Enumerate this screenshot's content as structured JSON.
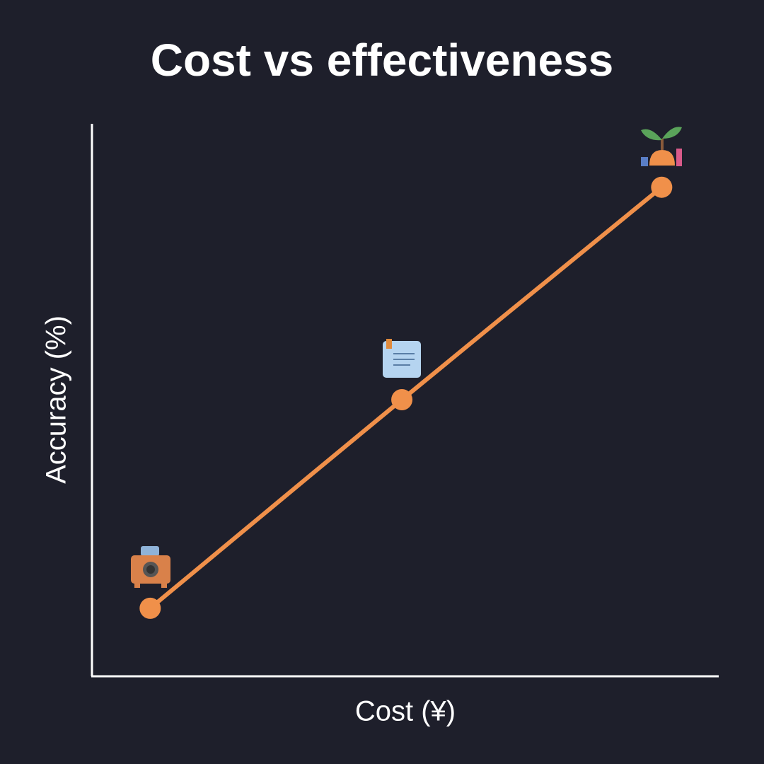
{
  "chart_data": {
    "type": "line",
    "title": "Cost vs effectiveness",
    "x_label": "Cost (¥)",
    "y_label": "Accuracy (%)",
    "x": [
      9.3,
      49.5,
      91
    ],
    "series": [
      {
        "color": "#f0904a",
        "values": [
          12.2,
          50,
          88.5
        ]
      }
    ],
    "xlim": [
      0,
      100
    ],
    "ylim": [
      0,
      100
    ]
  }
}
